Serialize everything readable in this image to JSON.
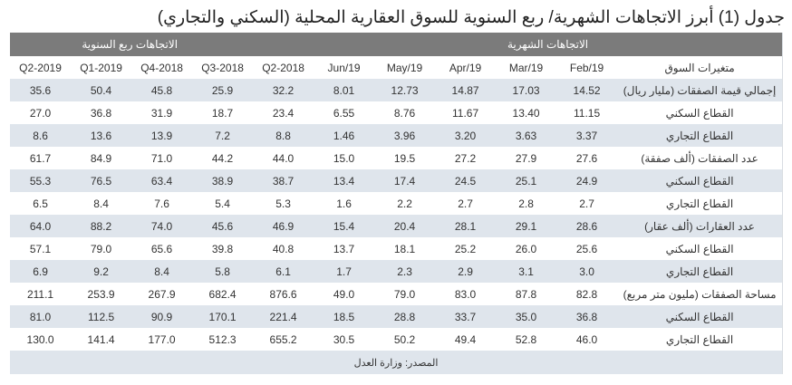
{
  "title": "جدول (1) أبرز الاتجاهات الشهرية/ ربع السنوية للسوق العقارية المحلية (السكني والتجاري)",
  "group_headers": {
    "monthly": "الاتجاهات الشهرية",
    "quarterly": "الاتجاهات ربع السنوية"
  },
  "columns": [
    "متغيرات السوق",
    "Feb/19",
    "Mar/19",
    "Apr/19",
    "May/19",
    "Jun/19",
    "2018-Q2",
    "2018-Q3",
    "2018-Q4",
    "2019-Q1",
    "2019-Q2"
  ],
  "rows": [
    [
      "إجمالي قيمة الصفقات (مليار ريال)",
      "14.52",
      "17.03",
      "14.87",
      "12.73",
      "8.01",
      "32.2",
      "25.9",
      "45.8",
      "50.4",
      "35.6"
    ],
    [
      "القطاع السكني",
      "11.15",
      "13.40",
      "11.67",
      "8.76",
      "6.55",
      "23.4",
      "18.7",
      "31.9",
      "36.8",
      "27.0"
    ],
    [
      "القطاع التجاري",
      "3.37",
      "3.63",
      "3.20",
      "3.96",
      "1.46",
      "8.8",
      "7.2",
      "13.9",
      "13.6",
      "8.6"
    ],
    [
      "عدد الصفقات (ألف صفقة)",
      "27.6",
      "27.9",
      "27.2",
      "19.5",
      "15.0",
      "44.0",
      "44.2",
      "71.0",
      "84.9",
      "61.7"
    ],
    [
      "القطاع السكني",
      "24.9",
      "25.1",
      "24.5",
      "17.4",
      "13.4",
      "38.7",
      "38.9",
      "63.4",
      "76.5",
      "55.3"
    ],
    [
      "القطاع التجاري",
      "2.7",
      "2.8",
      "2.7",
      "2.2",
      "1.6",
      "5.3",
      "5.4",
      "7.6",
      "8.4",
      "6.5"
    ],
    [
      "عدد العقارات (ألف عقار)",
      "28.6",
      "29.1",
      "28.1",
      "20.4",
      "15.4",
      "46.9",
      "45.6",
      "74.0",
      "88.2",
      "64.0"
    ],
    [
      "القطاع السكني",
      "25.6",
      "26.0",
      "25.2",
      "18.1",
      "13.7",
      "40.8",
      "39.8",
      "65.6",
      "79.0",
      "57.1"
    ],
    [
      "القطاع التجاري",
      "3.0",
      "3.1",
      "2.9",
      "2.3",
      "1.7",
      "6.1",
      "5.8",
      "8.4",
      "9.2",
      "6.9"
    ],
    [
      "مساحة الصفقات (مليون متر مربع)",
      "82.8",
      "87.8",
      "83.0",
      "79.0",
      "49.0",
      "876.6",
      "682.4",
      "267.9",
      "253.9",
      "211.1"
    ],
    [
      "القطاع السكني",
      "36.8",
      "35.0",
      "33.7",
      "28.8",
      "18.5",
      "221.4",
      "170.1",
      "90.9",
      "112.5",
      "81.0"
    ],
    [
      "القطاع التجاري",
      "46.0",
      "52.8",
      "49.4",
      "50.2",
      "30.5",
      "655.2",
      "512.3",
      "177.0",
      "141.4",
      "130.0"
    ]
  ],
  "source": "المصدر: وزارة العدل"
}
